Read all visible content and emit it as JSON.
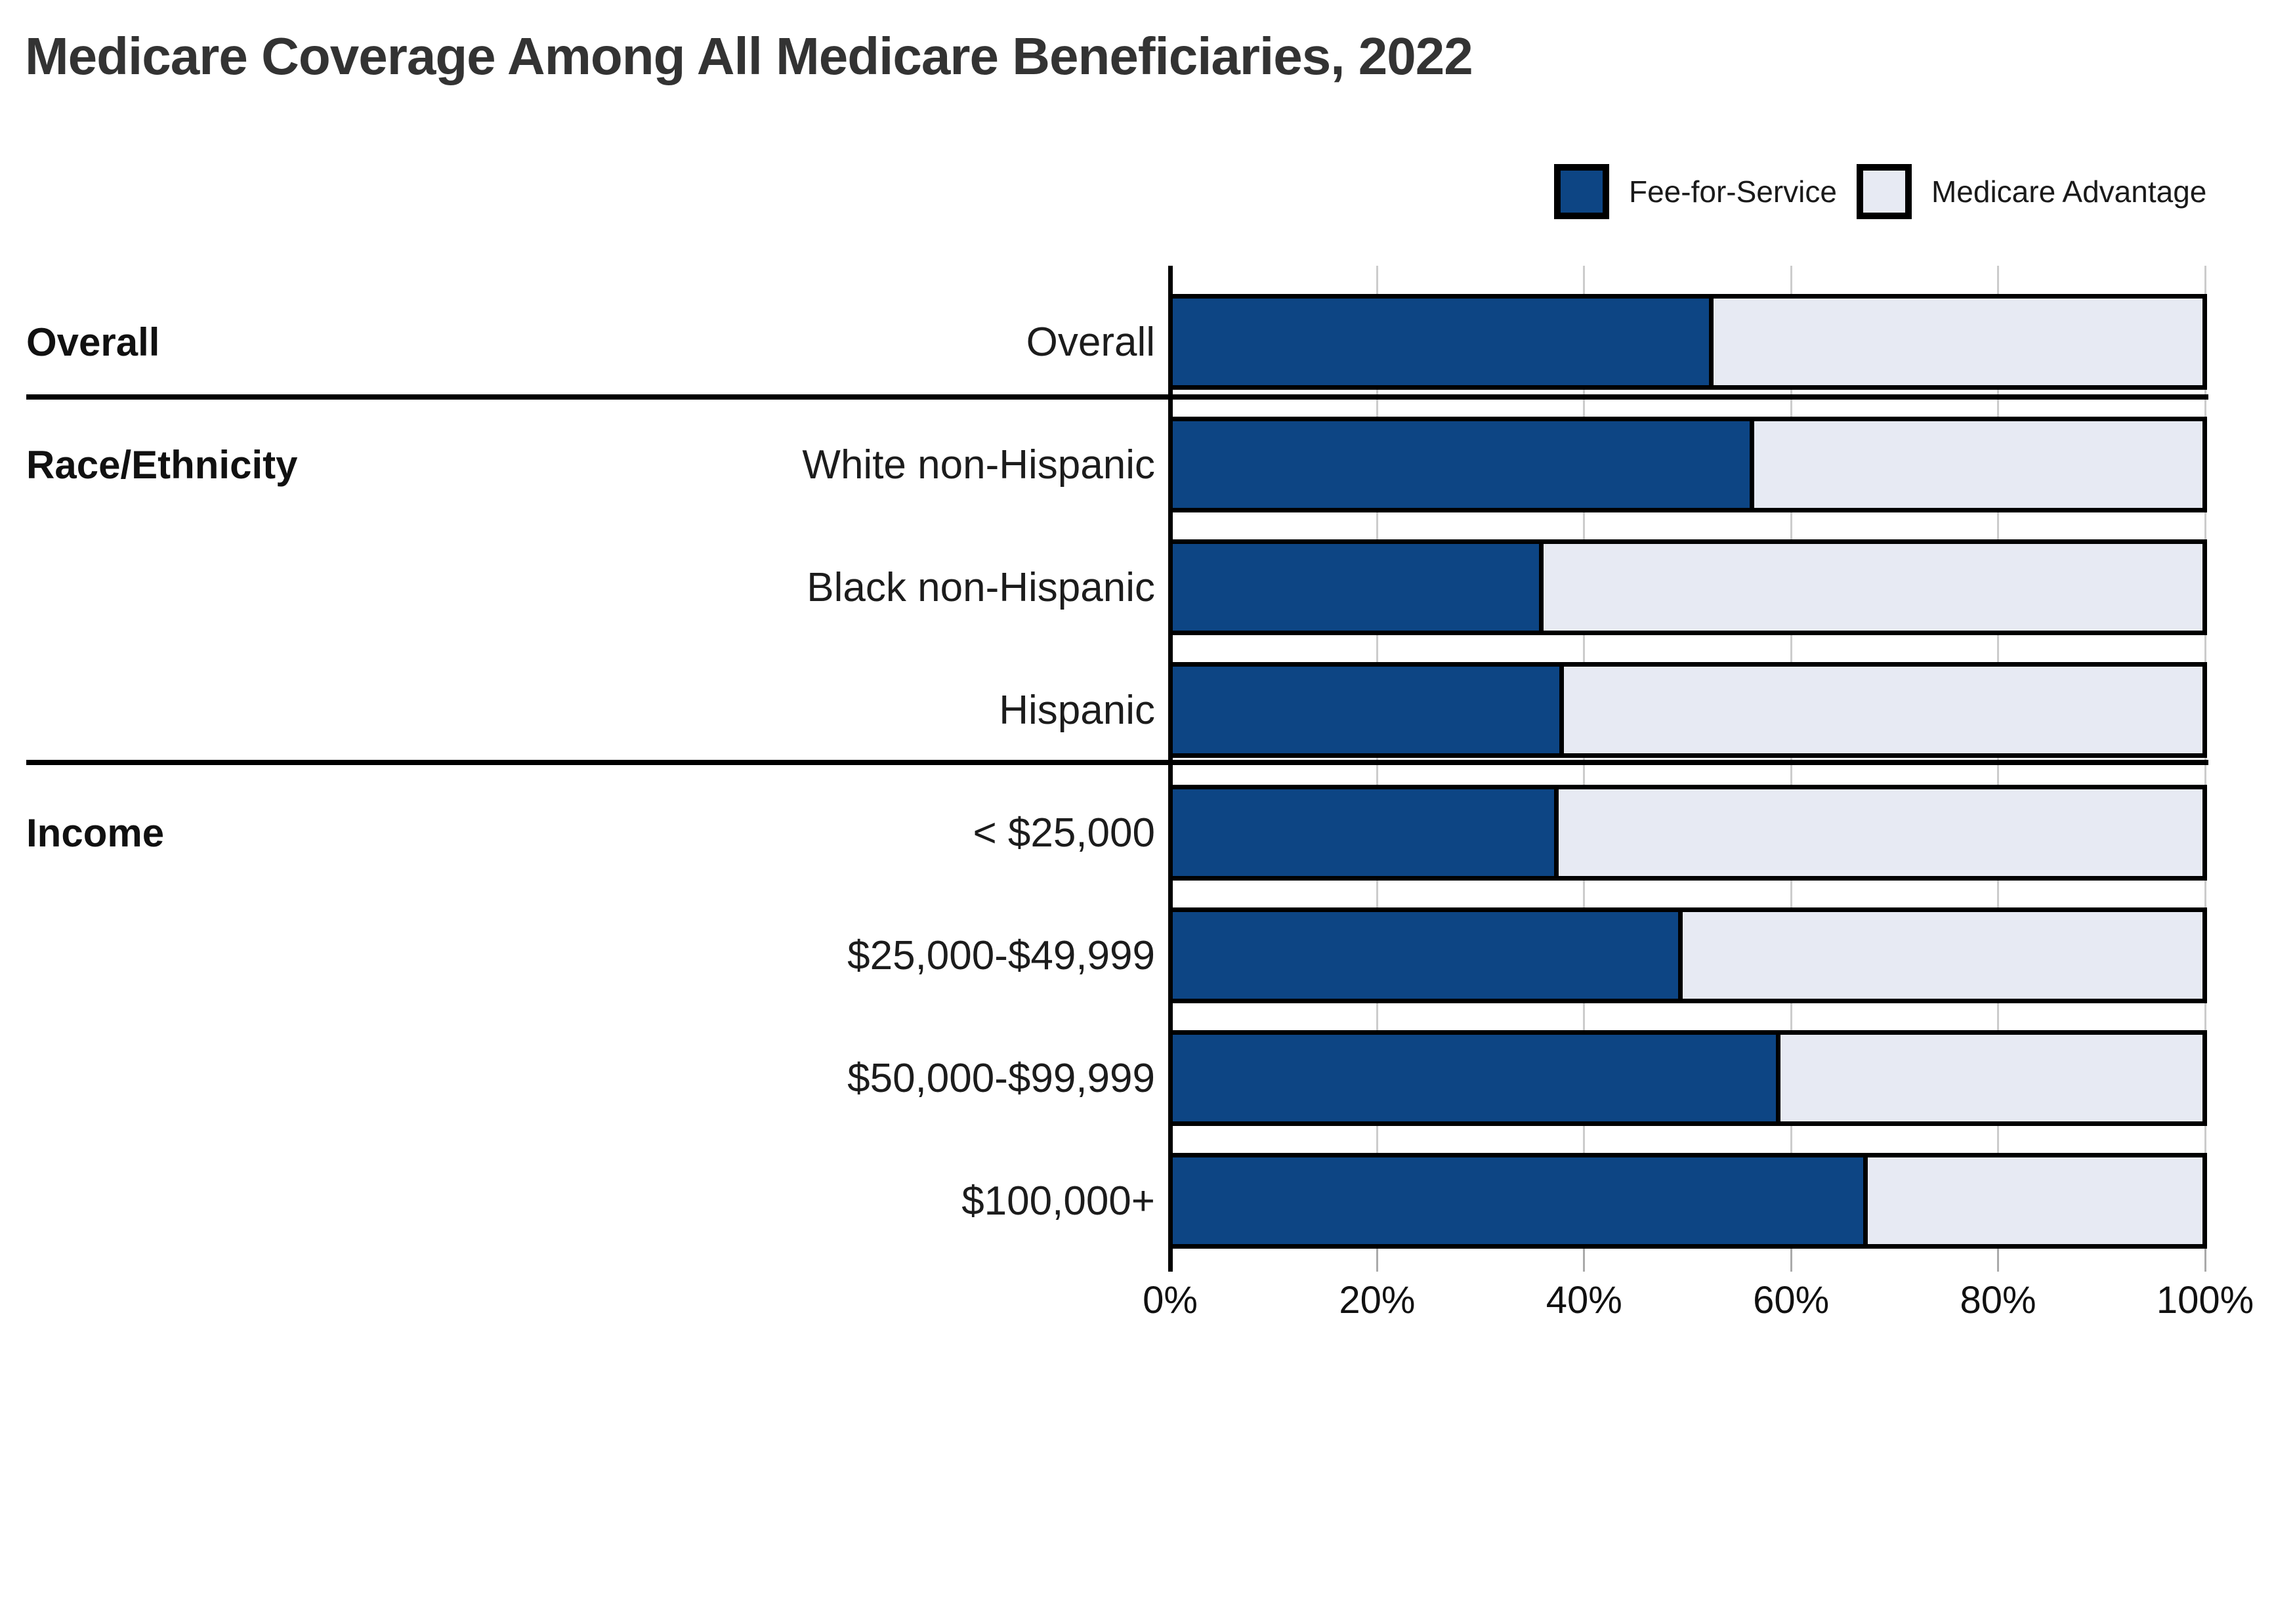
{
  "chart_data": {
    "type": "bar",
    "orientation": "horizontal",
    "stacked": true,
    "title": "Medicare Coverage Among All Medicare Beneficiaries, 2022",
    "categories": [
      "Overall",
      "White non-Hispanic",
      "Black non-Hispanic",
      "Hispanic",
      "< $25,000",
      "$25,000-$49,999",
      "$50,000-$99,999",
      "$100,000+"
    ],
    "series": [
      {
        "name": "Fee-for-Service",
        "color": "#0d4584",
        "values": [
          52.5,
          56.5,
          36,
          38,
          37.5,
          49.5,
          59,
          67.5
        ]
      },
      {
        "name": "Medicare Advantage",
        "color": "#e7eaf3",
        "values": [
          47.5,
          43.5,
          64,
          62,
          62.5,
          50.5,
          41,
          32.5
        ]
      }
    ],
    "groups": [
      {
        "label": "Overall",
        "start": 0,
        "count": 1
      },
      {
        "label": "Race/Ethnicity",
        "start": 1,
        "count": 3
      },
      {
        "label": "Income",
        "start": 4,
        "count": 4
      }
    ],
    "x_ticks": [
      "0%",
      "20%",
      "40%",
      "60%",
      "80%",
      "100%"
    ],
    "xlim": [
      0,
      100
    ],
    "legend_position": "top-right",
    "grid": "vertical",
    "bar_outline_color": "#000000",
    "gridline_color": "#cccccc"
  }
}
